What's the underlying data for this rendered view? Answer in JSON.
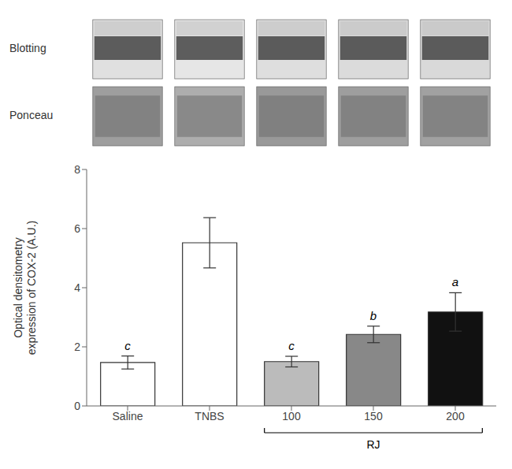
{
  "chart_data": {
    "type": "bar",
    "categories": [
      "Saline",
      "TNBS",
      "100",
      "150",
      "200"
    ],
    "values": [
      1.47,
      5.52,
      1.5,
      2.42,
      3.18
    ],
    "errors": [
      0.22,
      0.85,
      0.18,
      0.28,
      0.65
    ],
    "colors": [
      "#ffffff",
      "#ffffff",
      "#bbbbbb",
      "#888888",
      "#111111"
    ],
    "ylabel": "Optical densitometry\nexpression of COX-2 (A.U.)",
    "ylim": [
      0,
      8
    ],
    "yticks": [
      0,
      2,
      4,
      6,
      8
    ],
    "grid": false,
    "annotations": [
      {
        "text": "c",
        "category": "Saline"
      },
      {
        "text": "c",
        "category": "100"
      },
      {
        "text": "b",
        "category": "150"
      },
      {
        "text": "a",
        "category": "200"
      },
      {
        "text": "RJ",
        "categories": [
          "100",
          "150",
          "200"
        ]
      },
      {
        "text": "Blotting"
      },
      {
        "text": "Ponceau"
      }
    ]
  }
}
